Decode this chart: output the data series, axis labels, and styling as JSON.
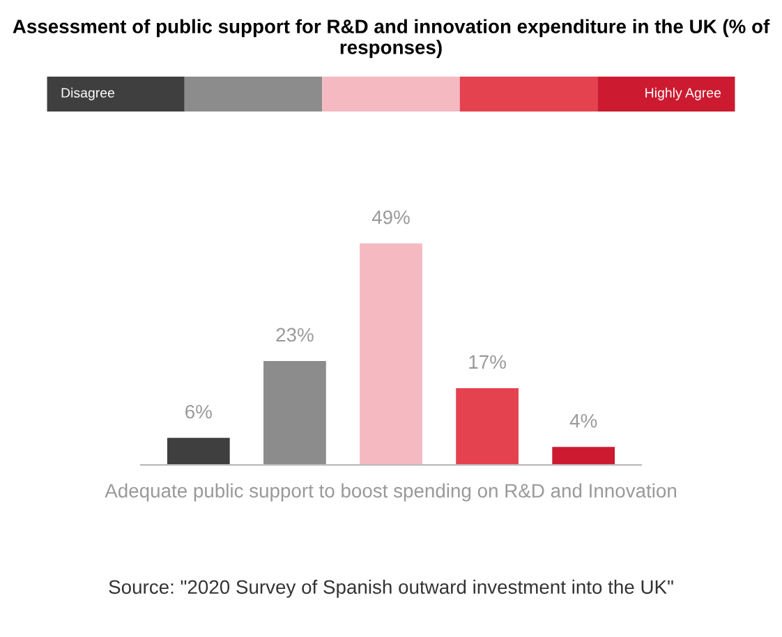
{
  "chart_data": {
    "type": "bar",
    "title": "Assessment of public support for R&D and innovation expenditure in the UK (% of responses)",
    "categories": [
      null,
      null,
      null,
      null,
      null
    ],
    "values": [
      6,
      23,
      49,
      17,
      4
    ],
    "value_labels": [
      "6%",
      "23%",
      "49%",
      "17%",
      "4%"
    ],
    "colors": [
      "#3f3f3f",
      "#8c8c8c",
      "#f5b9c2",
      "#e4424f",
      "#cc1b30"
    ],
    "xlabel": "Adequate public support to boost spending on R&D and Innovation",
    "annotations": [
      "Disagree",
      "Highly Agree",
      "Source: \"2020 Survey of Spanish outward investment into the UK\""
    ],
    "grid": false
  }
}
